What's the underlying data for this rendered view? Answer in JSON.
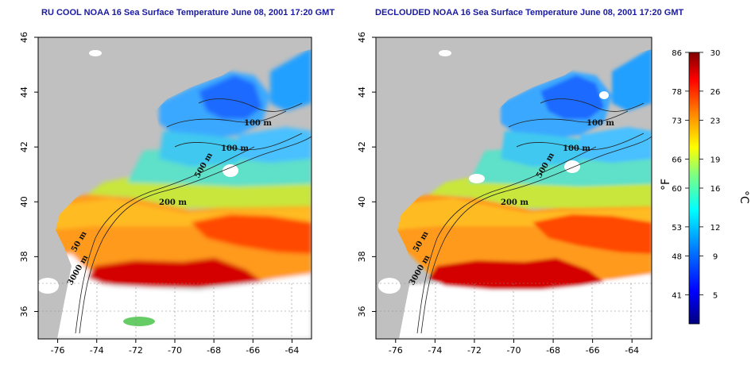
{
  "titles": {
    "left": "RU COOL NOAA 16 Sea Surface Temperature June 08, 2001 17:20 GMT",
    "right": "DECLOUDED NOAA 16 Sea Surface Temperature June 08, 2001 17:20 GMT"
  },
  "map": {
    "lon_range": [
      -77,
      -63
    ],
    "lat_range": [
      35,
      46
    ],
    "lon_ticks": [
      "-76",
      "-74",
      "-72",
      "-70",
      "-68",
      "-66",
      "-64"
    ],
    "lat_ticks": [
      "36",
      "38",
      "40",
      "42",
      "44",
      "46"
    ],
    "isobath_labels": {
      "left": [
        "100 m",
        "100 m",
        "500 m",
        "200 m",
        "50 m",
        "3000 m"
      ],
      "right": [
        "100 m",
        "100 m",
        "500 m",
        "200 m",
        "50 m",
        "3000 m"
      ]
    },
    "land_color": "#c0c0c0",
    "cloud_color": "#ffffff"
  },
  "colorbar": {
    "fahrenheit_ticks": [
      "86",
      "78",
      "73",
      "66",
      "60",
      "53",
      "48",
      "41"
    ],
    "celsius_ticks": [
      "30",
      "26",
      "23",
      "19",
      "16",
      "12",
      "9",
      "5"
    ],
    "fahrenheit_unit": "°F",
    "celsius_unit": "°C",
    "colors": [
      "#00007f",
      "#0000ff",
      "#0080ff",
      "#00ffff",
      "#80ff80",
      "#ffff00",
      "#ff8000",
      "#ff0000",
      "#7f0000"
    ]
  }
}
